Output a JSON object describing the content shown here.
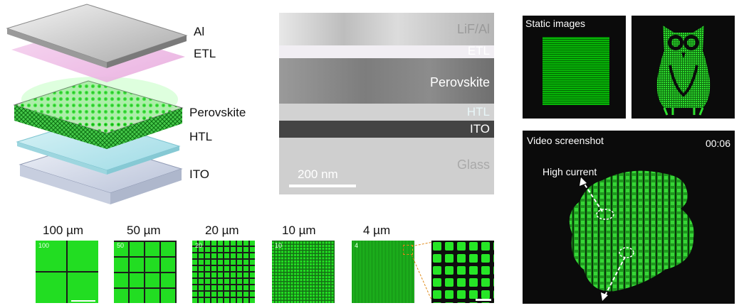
{
  "device_stack": {
    "layers": [
      "Al",
      "ETL",
      "Perovskite",
      "HTL",
      "ITO"
    ]
  },
  "sem": {
    "layers": [
      "LiF/Al",
      "ETL",
      "Perovskite",
      "HTL",
      "ITO",
      "Glass"
    ],
    "scale_bar": "200 nm"
  },
  "static_images": {
    "title": "Static images"
  },
  "video": {
    "title": "Video screenshot",
    "timestamp": "00:06",
    "annotation": "High current"
  },
  "pixel_tiles": [
    {
      "size_label": "100 µm",
      "badge": "100",
      "grid": 2
    },
    {
      "size_label": "50 µm",
      "badge": "50",
      "grid": 4
    },
    {
      "size_label": "20 µm",
      "badge": "20",
      "grid": 10
    },
    {
      "size_label": "10 µm",
      "badge": "10",
      "grid": 20
    },
    {
      "size_label": "4 µm",
      "badge": "4",
      "grid": 48
    }
  ],
  "colors": {
    "emission_green": "#2fe02f",
    "pixel_green": "#22dd22"
  }
}
